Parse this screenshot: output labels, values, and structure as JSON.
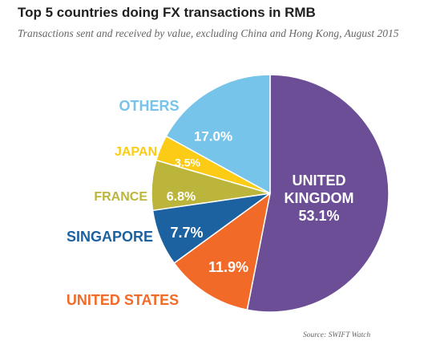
{
  "chart_data": {
    "type": "pie",
    "title": "Top 5 countries doing FX transactions in RMB",
    "subtitle": "Transactions sent and received by value, excluding China and Hong Kong, August 2015",
    "source": "Source: SWIFT Watch",
    "slices": [
      {
        "label": "UNITED KINGDOM",
        "label_lines": [
          "UNITED",
          "KINGDOM"
        ],
        "value": 53.1,
        "value_label": "53.1%",
        "color": "#6c4e96",
        "label_color": "#ffffff"
      },
      {
        "label": "UNITED STATES",
        "value": 11.9,
        "value_label": "11.9%",
        "color": "#f26a27",
        "label_color": "#f26a27"
      },
      {
        "label": "SINGAPORE",
        "value": 7.7,
        "value_label": "7.7%",
        "color": "#1d62a0",
        "label_color": "#1d62a0"
      },
      {
        "label": "FRANCE",
        "value": 6.8,
        "value_label": "6.8%",
        "color": "#bcb53c",
        "label_color": "#bcb53c"
      },
      {
        "label": "JAPAN",
        "value": 3.5,
        "value_label": "3.5%",
        "color": "#fccb15",
        "label_color": "#fccb15"
      },
      {
        "label": "OTHERS",
        "value": 17.0,
        "value_label": "17.0%",
        "color": "#76c4ea",
        "label_color": "#76c4ea"
      }
    ]
  }
}
